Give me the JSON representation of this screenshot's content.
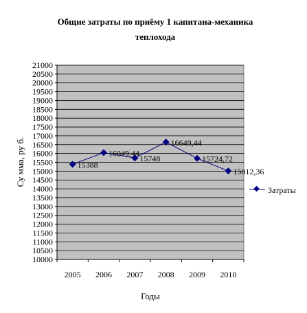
{
  "chart_data": {
    "type": "line",
    "title_line1": "Общие затраты по приёму 1 капитана-механика",
    "title_line2": "теплохода",
    "xlabel": "Годы",
    "ylabel": "Су мма, ру б.",
    "categories": [
      "2005",
      "2006",
      "2007",
      "2008",
      "2009",
      "2010"
    ],
    "series": [
      {
        "name": "Затраты",
        "values": [
          15388,
          16049.44,
          15748,
          16649.44,
          15724.72,
          15012.36
        ],
        "labels": [
          "15388",
          "16049,44",
          "15748",
          "16649,44",
          "15724,72",
          "15012,36"
        ],
        "color": "#000080"
      }
    ],
    "ylim": [
      10000,
      21000
    ],
    "ytick_step": 500,
    "yticks": [
      "10000",
      "10500",
      "11000",
      "11500",
      "12000",
      "12500",
      "13000",
      "13500",
      "14000",
      "14500",
      "15000",
      "15500",
      "16000",
      "16500",
      "17000",
      "17500",
      "18000",
      "18500",
      "19000",
      "19500",
      "20000",
      "20500",
      "21000"
    ],
    "grid": true,
    "plot_background": "#c0c0c0",
    "legend_position": "right"
  }
}
